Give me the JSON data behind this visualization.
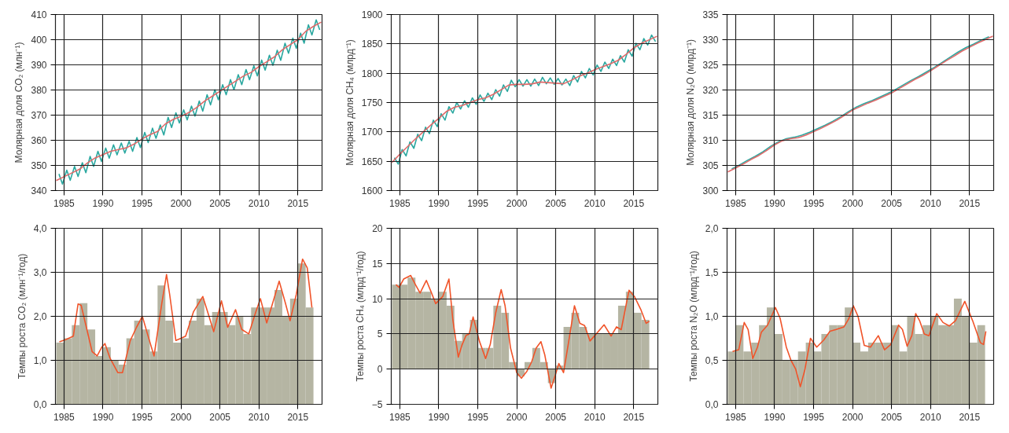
{
  "chart_data": [
    {
      "type": "line",
      "ylabel": "Молярная доля CO₂ (млн⁻¹)",
      "xlim": [
        1983.9,
        2018.1
      ],
      "xticks": [
        1985,
        1990,
        1995,
        2000,
        2005,
        2010,
        2015
      ],
      "ylim": [
        340,
        410
      ],
      "yticks": [
        340,
        350,
        360,
        370,
        380,
        390,
        400,
        410
      ],
      "grid": true,
      "series": [
        {
          "color": "#2aa8a0",
          "x": [
            1984.35,
            1984.8,
            1985.35,
            1985.8,
            1986.35,
            1986.8,
            1987.35,
            1987.8,
            1988.35,
            1988.8,
            1989.35,
            1989.8,
            1990.35,
            1990.8,
            1991.35,
            1991.8,
            1992.35,
            1992.8,
            1993.35,
            1993.8,
            1994.35,
            1994.8,
            1995.35,
            1995.8,
            1996.35,
            1996.8,
            1997.35,
            1997.8,
            1998.35,
            1998.8,
            1999.35,
            1999.8,
            2000.35,
            2000.8,
            2001.35,
            2001.8,
            2002.35,
            2002.8,
            2003.35,
            2003.8,
            2004.35,
            2004.8,
            2005.35,
            2005.8,
            2006.35,
            2006.8,
            2007.35,
            2007.8,
            2008.35,
            2008.8,
            2009.35,
            2009.8,
            2010.35,
            2010.8,
            2011.35,
            2011.8,
            2012.35,
            2012.8,
            2013.35,
            2013.8,
            2014.35,
            2014.8,
            2015.35,
            2015.8,
            2016.35,
            2016.8,
            2017.35,
            2017.8
          ],
          "values": [
            346.6,
            342.6,
            348.1,
            344.1,
            349.6,
            345.6,
            351.1,
            347.1,
            353.6,
            349.6,
            355.6,
            351.6,
            356.9,
            352.9,
            358.2,
            354.2,
            358.9,
            354.9,
            359.6,
            355.6,
            361.1,
            357.1,
            363.1,
            359.1,
            364.8,
            360.8,
            366.1,
            362.1,
            369.1,
            365.1,
            370.9,
            366.9,
            372.1,
            368.1,
            373.6,
            369.6,
            375.6,
            371.6,
            378.1,
            374.1,
            380.1,
            376.1,
            382.1,
            378.1,
            384.1,
            380.1,
            386.1,
            382.1,
            388.1,
            384.1,
            389.6,
            385.6,
            391.9,
            387.9,
            393.8,
            389.8,
            395.8,
            391.8,
            398.6,
            394.6,
            400.6,
            396.6,
            402.6,
            398.6,
            405.9,
            401.9,
            407.9,
            403.9
          ]
        },
        {
          "color": "#e06a6a",
          "x": [
            1984,
            1985,
            1986,
            1987,
            1988,
            1989,
            1990,
            1991,
            1992,
            1993,
            1994,
            1995,
            1996,
            1997,
            1998,
            1999,
            2000,
            2001,
            2002,
            2003,
            2004,
            2005,
            2006,
            2007,
            2008,
            2009,
            2010,
            2011,
            2012,
            2013,
            2014,
            2015,
            2016,
            2017,
            2018
          ],
          "values": [
            344,
            345.5,
            347,
            348.5,
            351,
            353,
            354.3,
            355.6,
            356.3,
            357,
            358.5,
            360.5,
            362.2,
            363.5,
            366.5,
            368.3,
            369.5,
            371,
            373,
            375.5,
            377.5,
            379.5,
            381.5,
            383.5,
            385.5,
            387,
            389.3,
            391.2,
            393.2,
            396,
            398,
            400,
            403.3,
            405.3,
            407
          ]
        }
      ]
    },
    {
      "type": "line",
      "ylabel": "Молярная доля CH₄ (млрд⁻¹)",
      "xlim": [
        1983.9,
        2018.1
      ],
      "xticks": [
        1985,
        1990,
        1995,
        2000,
        2005,
        2010,
        2015
      ],
      "ylim": [
        1600,
        1900
      ],
      "yticks": [
        1600,
        1650,
        1700,
        1750,
        1800,
        1850,
        1900
      ],
      "grid": true,
      "series": [
        {
          "color": "#2aa8a0",
          "x": [
            1984.3,
            1984.8,
            1985.3,
            1985.8,
            1986.3,
            1986.8,
            1987.3,
            1987.8,
            1988.3,
            1988.8,
            1989.3,
            1989.8,
            1990.3,
            1990.8,
            1991.3,
            1991.8,
            1992.3,
            1992.8,
            1993.3,
            1993.8,
            1994.3,
            1994.8,
            1995.3,
            1995.8,
            1996.3,
            1996.8,
            1997.3,
            1997.8,
            1998.3,
            1998.8,
            1999.3,
            1999.8,
            2000.3,
            2000.8,
            2001.3,
            2001.8,
            2002.3,
            2002.8,
            2003.3,
            2003.8,
            2004.3,
            2004.8,
            2005.3,
            2005.8,
            2006.3,
            2006.8,
            2007.3,
            2007.8,
            2008.3,
            2008.8,
            2009.3,
            2009.8,
            2010.3,
            2010.8,
            2011.3,
            2011.8,
            2012.3,
            2012.8,
            2013.3,
            2013.8,
            2014.3,
            2014.8,
            2015.3,
            2015.8,
            2016.3,
            2016.8,
            2017.3,
            2017.8
          ],
          "values": [
            1656,
            1645,
            1670,
            1659,
            1683,
            1672,
            1696,
            1685,
            1708,
            1697,
            1720,
            1709,
            1731,
            1720,
            1743,
            1732,
            1750,
            1739,
            1753,
            1742,
            1758,
            1747,
            1763,
            1752,
            1766,
            1755,
            1772,
            1761,
            1780,
            1769,
            1788,
            1777,
            1789,
            1778,
            1789,
            1778,
            1790,
            1779,
            1793,
            1782,
            1792,
            1781,
            1791,
            1780,
            1790,
            1779,
            1796,
            1785,
            1803,
            1792,
            1808,
            1797,
            1814,
            1803,
            1819,
            1808,
            1824,
            1813,
            1830,
            1819,
            1840,
            1829,
            1851,
            1840,
            1859,
            1848,
            1865,
            1854
          ]
        },
        {
          "color": "#e06a6a",
          "x": [
            1984,
            1985,
            1986,
            1987,
            1988,
            1989,
            1990,
            1991,
            1992,
            1993,
            1994,
            1995,
            1996,
            1997,
            1998,
            1999,
            2000,
            2001,
            2002,
            2003,
            2004,
            2005,
            2006,
            2007,
            2008,
            2009,
            2010,
            2011,
            2012,
            2013,
            2014,
            2015,
            2016,
            2017,
            2018
          ],
          "values": [
            1648,
            1662,
            1675,
            1688,
            1700,
            1712,
            1723,
            1735,
            1742,
            1745,
            1750,
            1755,
            1758,
            1764,
            1772,
            1780,
            1781,
            1781,
            1782,
            1785,
            1784,
            1783,
            1782,
            1788,
            1795,
            1800,
            1806,
            1811,
            1816,
            1822,
            1832,
            1843,
            1851,
            1857,
            1863
          ]
        }
      ]
    },
    {
      "type": "line",
      "ylabel": "Молярная доля N₂O (млрд⁻¹)",
      "xlim": [
        1983.9,
        2018.1
      ],
      "xticks": [
        1985,
        1990,
        1995,
        2000,
        2005,
        2010,
        2015
      ],
      "ylim": [
        300,
        335
      ],
      "yticks": [
        300,
        305,
        310,
        315,
        320,
        325,
        330,
        335
      ],
      "grid": true,
      "series": [
        {
          "color": "#2aa8a0",
          "x": [
            1984.5,
            1985.5,
            1986.5,
            1987.5,
            1988.5,
            1989.5,
            1990.5,
            1991.5,
            1992.5,
            1993.5,
            1994.5,
            1995.5,
            1996.5,
            1997.5,
            1998.5,
            1999.5,
            2000.5,
            2001.5,
            2002.5,
            2003.5,
            2004.5,
            2005.5,
            2006.5,
            2007.5,
            2008.5,
            2009.5,
            2010.5,
            2011.5,
            2012.5,
            2013.5,
            2014.5,
            2015.5,
            2016.5,
            2017.5
          ],
          "values": [
            304.3,
            305.1,
            306.0,
            306.8,
            307.7,
            308.8,
            309.7,
            310.3,
            310.6,
            311.0,
            311.6,
            312.3,
            313.0,
            313.8,
            314.7,
            315.7,
            316.6,
            317.3,
            317.9,
            318.6,
            319.3,
            320.1,
            321.0,
            321.9,
            322.7,
            323.6,
            324.5,
            325.5,
            326.5,
            327.5,
            328.4,
            329.1,
            329.9,
            330.6
          ]
        },
        {
          "color": "#e06a6a",
          "x": [
            1984,
            1985,
            1986,
            1987,
            1988,
            1989,
            1990,
            1991,
            1992,
            1993,
            1994,
            1995,
            1996,
            1997,
            1998,
            1999,
            2000,
            2001,
            2002,
            2003,
            2004,
            2005,
            2006,
            2007,
            2008,
            2009,
            2010,
            2011,
            2012,
            2013,
            2014,
            2015,
            2016,
            2017,
            2018
          ],
          "values": [
            303.7,
            304.5,
            305.3,
            306.2,
            307.0,
            308.0,
            309.1,
            309.9,
            310.3,
            310.5,
            311.0,
            311.7,
            312.4,
            313.2,
            314.0,
            315.0,
            316.0,
            316.7,
            317.4,
            318.0,
            318.7,
            319.4,
            320.3,
            321.2,
            322.1,
            322.9,
            323.8,
            324.8,
            325.8,
            326.7,
            327.7,
            328.5,
            329.3,
            330.0,
            330.7
          ]
        }
      ]
    },
    {
      "type": "bar",
      "ylabel": "Темпы роста CO₂ (млн⁻¹/год)",
      "xlim": [
        1983.9,
        2018.1
      ],
      "xticks": [
        1985,
        1990,
        1995,
        2000,
        2005,
        2010,
        2015
      ],
      "ylim": [
        0,
        4
      ],
      "yticks": [
        {
          "value": 0,
          "label": "0,0"
        },
        {
          "value": 1,
          "label": "1,0"
        },
        {
          "value": 2,
          "label": "2,0"
        },
        {
          "value": 3,
          "label": "3,0"
        },
        {
          "value": 4,
          "label": "4,0"
        }
      ],
      "grid": true,
      "series": [
        {
          "type": "bar",
          "color": "#b5b5a3",
          "x": [
            1984.5,
            1985.5,
            1986.5,
            1987.5,
            1988.5,
            1989.5,
            1990.5,
            1991.5,
            1992.5,
            1993.5,
            1994.5,
            1995.5,
            1996.5,
            1997.5,
            1998.5,
            1999.5,
            2000.5,
            2001.5,
            2002.5,
            2003.5,
            2004.5,
            2005.5,
            2006.5,
            2007.5,
            2008.5,
            2009.5,
            2010.5,
            2011.5,
            2012.5,
            2013.5,
            2014.5,
            2015.5,
            2016.5
          ],
          "values": [
            1.4,
            1.5,
            1.8,
            2.3,
            1.7,
            1.1,
            1.3,
            1.0,
            0.9,
            1.5,
            1.9,
            1.7,
            1.2,
            2.7,
            1.9,
            1.4,
            1.5,
            1.9,
            2.4,
            1.8,
            2.1,
            2.1,
            1.8,
            2.0,
            1.6,
            2.2,
            2.2,
            2.2,
            2.6,
            2.0,
            2.4,
            3.2,
            2.2
          ]
        },
        {
          "type": "line",
          "color": "#f0542a",
          "x": [
            1984.4,
            1985.2,
            1986.2,
            1986.4,
            1986.8,
            1987.2,
            1987.8,
            1988.6,
            1989.25,
            1989.85,
            1990.25,
            1990.9,
            1991.9,
            1992.5,
            1993.5,
            1994.3,
            1995.05,
            1995.7,
            1996.55,
            1997.55,
            1998.15,
            1998.55,
            1999.35,
            2000.0,
            2000.6,
            2001.6,
            2002.8,
            2003.6,
            2004.2,
            2005.2,
            2006.0,
            2007.0,
            2007.8,
            2008.7,
            2009.6,
            2010.2,
            2011.0,
            2011.6,
            2012.6,
            2013.4,
            2014.0,
            2014.8,
            2015.6,
            2016.2,
            2016.8
          ],
          "values": [
            1.42,
            1.47,
            1.55,
            1.8,
            2.28,
            2.25,
            1.8,
            1.2,
            1.1,
            1.3,
            1.38,
            1.05,
            0.72,
            0.72,
            1.45,
            1.75,
            2.0,
            1.6,
            1.1,
            2.3,
            2.95,
            2.5,
            1.45,
            1.5,
            1.55,
            2.1,
            2.45,
            2.0,
            1.65,
            2.35,
            1.75,
            2.15,
            1.7,
            1.6,
            2.1,
            2.4,
            1.85,
            2.2,
            2.8,
            2.3,
            1.9,
            2.5,
            3.3,
            3.1,
            2.2
          ]
        }
      ]
    },
    {
      "type": "bar",
      "ylabel": "Темпы роста CH₄ (млрд⁻¹/год)",
      "xlim": [
        1983.9,
        2018.1
      ],
      "xticks": [
        1985,
        1990,
        1995,
        2000,
        2005,
        2010,
        2015
      ],
      "ylim": [
        -5,
        20
      ],
      "yticks": [
        -5,
        0,
        5,
        10,
        15,
        20
      ],
      "grid": true,
      "series": [
        {
          "type": "bar",
          "color": "#b5b5a3",
          "x": [
            1984.5,
            1985.5,
            1986.5,
            1987.5,
            1988.5,
            1989.5,
            1990.5,
            1991.5,
            1992.5,
            1993.5,
            1994.5,
            1995.5,
            1996.5,
            1997.5,
            1998.5,
            1999.5,
            2000.5,
            2001.5,
            2002.5,
            2003.5,
            2004.5,
            2005.5,
            2006.5,
            2007.5,
            2008.5,
            2009.5,
            2010.5,
            2011.5,
            2012.5,
            2013.5,
            2014.5,
            2015.5,
            2016.5
          ],
          "values": [
            12,
            12,
            13,
            11,
            11,
            10,
            11,
            9,
            4,
            5,
            7,
            3,
            3,
            9,
            8,
            1,
            -1,
            1,
            3,
            1,
            -2,
            0.5,
            6,
            8,
            6,
            5,
            5,
            5,
            5,
            9,
            11,
            8,
            7
          ]
        },
        {
          "type": "line",
          "color": "#f0542a",
          "x": [
            1984.5,
            1984.9,
            1985.5,
            1986.4,
            1987.0,
            1987.6,
            1988.4,
            1989.0,
            1989.6,
            1990.5,
            1991.3,
            1991.8,
            1992.5,
            1993.0,
            1993.5,
            1993.9,
            1994.4,
            1995.2,
            1996.0,
            1996.6,
            1997.3,
            1998.0,
            1998.5,
            1999.2,
            2000.0,
            2000.6,
            2001.3,
            2001.9,
            2002.5,
            2003.1,
            2003.6,
            2004.4,
            2004.9,
            2005.4,
            2006.0,
            2006.6,
            2007.4,
            2008.1,
            2008.7,
            2009.4,
            2010.2,
            2011.2,
            2012.1,
            2012.8,
            2013.4,
            2014.4,
            2015.1,
            2015.9,
            2016.6,
            2017.0
          ],
          "values": [
            12.0,
            11.6,
            12.8,
            13.3,
            12.0,
            10.8,
            12.6,
            11.0,
            9.3,
            10.3,
            12.8,
            7.0,
            1.7,
            3.5,
            4.8,
            5.0,
            7.4,
            4.0,
            1.5,
            3.5,
            8.0,
            11.3,
            9.0,
            3.0,
            -0.5,
            -1.3,
            -0.3,
            1.0,
            3.0,
            3.9,
            2.0,
            -2.7,
            -1.0,
            0.8,
            -0.5,
            3.5,
            9.0,
            6.5,
            6.2,
            4.0,
            5.0,
            6.3,
            4.7,
            6.0,
            5.6,
            11.2,
            10.3,
            8.5,
            6.5,
            6.8
          ]
        }
      ]
    },
    {
      "type": "bar",
      "ylabel": "Темпы роста N₂O (млрд⁻¹/год)",
      "xlim": [
        1983.9,
        2018.1
      ],
      "xticks": [
        1985,
        1990,
        1995,
        2000,
        2005,
        2010,
        2015
      ],
      "ylim": [
        0,
        2
      ],
      "yticks": [
        {
          "value": 0,
          "label": "0,0"
        },
        {
          "value": 0.5,
          "label": "0,5"
        },
        {
          "value": 1,
          "label": "1,0"
        },
        {
          "value": 1.5,
          "label": "1,5"
        },
        {
          "value": 2,
          "label": "2,0"
        }
      ],
      "grid": true,
      "series": [
        {
          "type": "bar",
          "color": "#b5b5a3",
          "x": [
            1984.5,
            1985.5,
            1986.5,
            1987.5,
            1988.5,
            1989.5,
            1990.5,
            1991.5,
            1992.5,
            1993.5,
            1994.5,
            1995.5,
            1996.5,
            1997.5,
            1998.5,
            1999.5,
            2000.5,
            2001.5,
            2002.5,
            2003.5,
            2004.5,
            2005.5,
            2006.5,
            2007.5,
            2008.5,
            2009.5,
            2010.5,
            2011.5,
            2012.5,
            2013.5,
            2014.5,
            2015.5,
            2016.5
          ],
          "values": [
            0.6,
            0.9,
            0.6,
            0.7,
            0.9,
            1.1,
            0.8,
            0.5,
            0.5,
            0.6,
            0.7,
            0.6,
            0.8,
            0.9,
            0.9,
            1.1,
            0.7,
            0.6,
            0.7,
            0.7,
            0.7,
            0.9,
            0.6,
            1.0,
            0.8,
            0.9,
            1.0,
            0.9,
            0.9,
            1.2,
            1.0,
            0.7,
            0.9
          ]
        },
        {
          "type": "line",
          "color": "#f0542a",
          "x": [
            1984.6,
            1985.4,
            1986.1,
            1986.6,
            1987.2,
            1987.8,
            1988.3,
            1989.1,
            1990.1,
            1990.7,
            1991.5,
            1992.1,
            1992.7,
            1993.3,
            1993.9,
            1994.6,
            1995.4,
            1996.3,
            1997.1,
            1997.9,
            1998.9,
            1999.5,
            2000.1,
            2000.7,
            2001.5,
            2002.3,
            2003.3,
            2004.1,
            2004.9,
            2005.9,
            2006.4,
            2007.0,
            2007.6,
            2008.1,
            2008.6,
            2009.2,
            2009.8,
            2010.8,
            2011.6,
            2012.4,
            2013.2,
            2014.4,
            2015.4,
            2016.0,
            2016.4,
            2016.8,
            2017.1
          ],
          "values": [
            0.6,
            0.62,
            0.93,
            0.85,
            0.52,
            0.65,
            0.82,
            0.9,
            1.1,
            0.98,
            0.65,
            0.5,
            0.4,
            0.2,
            0.4,
            0.75,
            0.65,
            0.73,
            0.83,
            0.85,
            0.88,
            0.97,
            1.12,
            1.0,
            0.67,
            0.65,
            0.78,
            0.62,
            0.68,
            0.9,
            0.85,
            0.66,
            0.78,
            1.03,
            0.95,
            0.8,
            0.78,
            1.03,
            0.93,
            0.89,
            0.95,
            1.17,
            0.95,
            0.8,
            0.7,
            0.68,
            0.83
          ]
        }
      ]
    }
  ]
}
